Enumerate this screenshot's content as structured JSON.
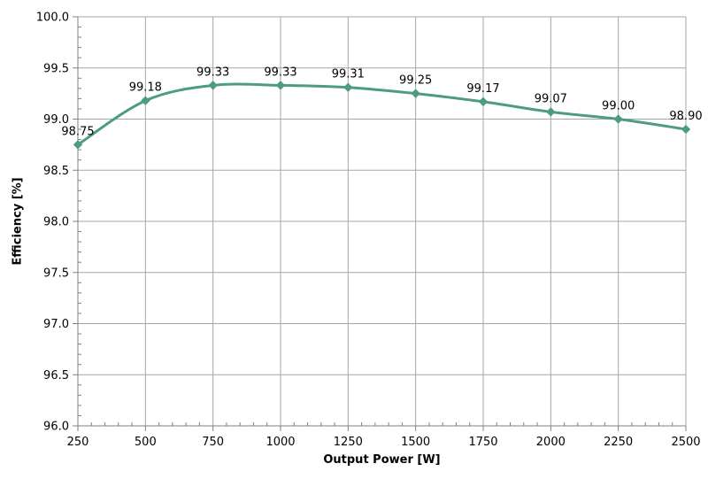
{
  "chart_data": {
    "type": "line",
    "title": "",
    "xlabel": "Output Power [W]",
    "ylabel": "Efficiency [%]",
    "x": [
      250,
      500,
      750,
      1000,
      1250,
      1500,
      1750,
      2000,
      2250,
      2500
    ],
    "series": [
      {
        "name": "Efficiency",
        "values": [
          98.75,
          99.18,
          99.33,
          99.33,
          99.31,
          99.25,
          99.17,
          99.07,
          99.0,
          98.9
        ],
        "data_labels": [
          "98.75",
          "99.18",
          "99.33",
          "99.33",
          "99.31",
          "99.25",
          "99.17",
          "99.07",
          "99.00",
          "98.90"
        ],
        "marker": "diamond",
        "smooth": true
      }
    ],
    "xlim": [
      250,
      2500
    ],
    "ylim": [
      96.0,
      100.0
    ],
    "x_tick_labels": [
      "250",
      "500",
      "750",
      "1000",
      "1250",
      "1500",
      "1750",
      "2000",
      "2250",
      "2500"
    ],
    "y_tick_labels": [
      "96.0",
      "96.5",
      "97.0",
      "97.5",
      "98.0",
      "98.5",
      "99.0",
      "99.5",
      "100.0"
    ],
    "x_minor_step": 50,
    "y_minor_step": 0.1,
    "grid": true,
    "legend": "none"
  },
  "colors": {
    "background": "#FFFFFF",
    "series_line": "#4E9C7E",
    "gridline": "#A6A6A6",
    "axis": "#808080",
    "text": "#000000"
  }
}
